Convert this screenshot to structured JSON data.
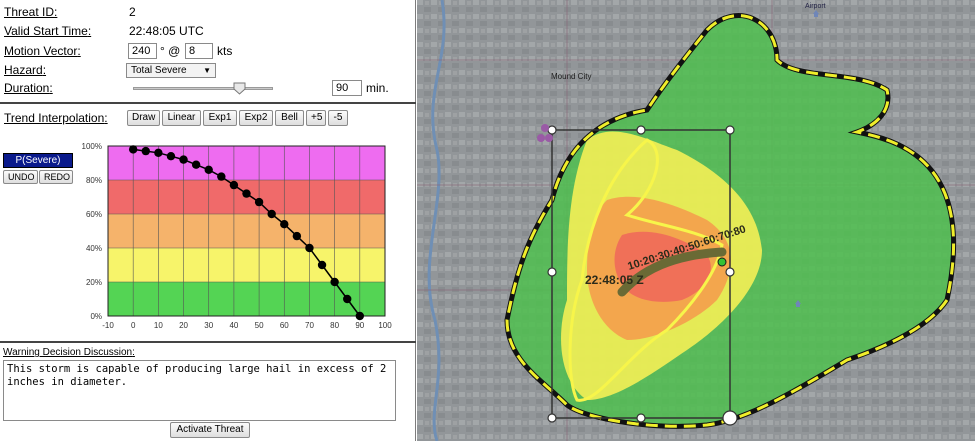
{
  "panel": {
    "threat_id_label": "Threat ID",
    "threat_id_value": "2",
    "valid_start_label": "Valid Start Time",
    "valid_start_value": "22:48:05 UTC",
    "motion_vector_label": "Motion Vector",
    "motion_direction": "240",
    "motion_degree_sign": "° @",
    "motion_speed": "8",
    "motion_units": "kts",
    "hazard_label": "Hazard",
    "hazard_value": "Total Severe",
    "duration_label": "Duration",
    "duration_value": "90",
    "duration_units": "min.",
    "duration_slider_fraction": 0.75,
    "colon": ":"
  },
  "trend": {
    "label": "Trend Interpolation",
    "buttons": [
      "Draw",
      "Linear",
      "Exp1",
      "Exp2",
      "Bell",
      "+5",
      "-5"
    ],
    "prob_badge": "P(Severe)",
    "undo_label": "UNDO",
    "redo_label": "REDO"
  },
  "chart_data": {
    "type": "line",
    "x_ticks": [
      "-10",
      "0",
      "10",
      "20",
      "30",
      "40",
      "50",
      "60",
      "70",
      "80",
      "90",
      "100"
    ],
    "y_ticks": [
      "0%",
      "20%",
      "40%",
      "60%",
      "80%",
      "100%"
    ],
    "xlim": [
      -10,
      100
    ],
    "ylim": [
      0,
      100
    ],
    "bands": [
      {
        "from": 0,
        "to": 20,
        "color": "#54d454"
      },
      {
        "from": 20,
        "to": 40,
        "color": "#f7f46a"
      },
      {
        "from": 40,
        "to": 60,
        "color": "#f5b36b"
      },
      {
        "from": 60,
        "to": 80,
        "color": "#f06a6a"
      },
      {
        "from": 80,
        "to": 100,
        "color": "#ee6cf0"
      }
    ],
    "series": [
      {
        "x": [
          0,
          5,
          10,
          15,
          20,
          25,
          30,
          35,
          40,
          45,
          50,
          55,
          60,
          65,
          70,
          75,
          80,
          85,
          90
        ],
        "values": [
          98,
          97,
          96,
          94,
          92,
          89,
          86,
          82,
          77,
          72,
          67,
          60,
          54,
          47,
          40,
          30,
          20,
          10,
          0
        ]
      }
    ]
  },
  "discussion": {
    "label": "Warning Decision Discussion",
    "text": "This storm is capable of producing large hail in excess of 2\ninches in diameter.",
    "activate_label": "Activate Threat"
  },
  "map": {
    "place_labels": [
      "Mound City",
      "Airport"
    ],
    "storm_time_label": "22:48:05 Z",
    "storm_track_overlap_label": "10:20:30:40:50:60:70:80"
  }
}
